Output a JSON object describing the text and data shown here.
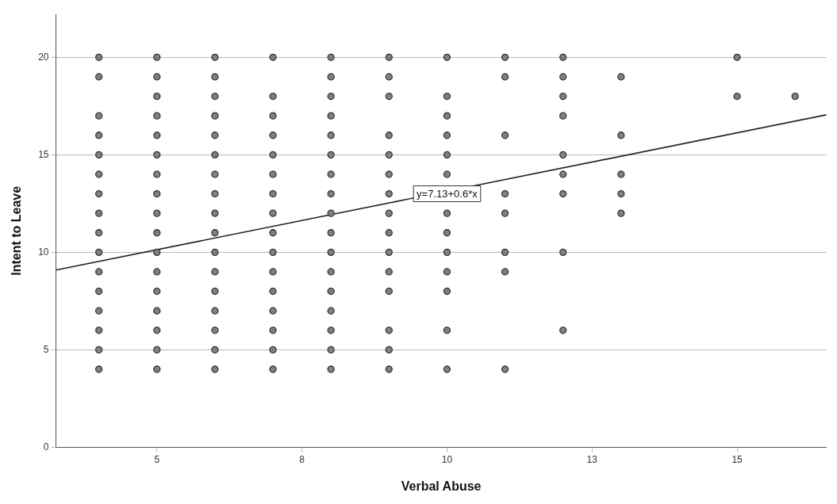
{
  "chart_data": {
    "type": "scatter",
    "xlabel": "Verbal Abuse",
    "ylabel": "Intent to Leave",
    "xlim": [
      3.26,
      16.54
    ],
    "ylim": [
      0,
      22.2
    ],
    "xticks": [
      5,
      {
        "value": 7.5,
        "label": "8"
      },
      10,
      {
        "value": 12.5,
        "label": "13"
      },
      15
    ],
    "yticks": [
      0,
      5,
      10,
      15,
      20
    ],
    "grid": "y",
    "legend": false,
    "marker": "circle",
    "series": [
      {
        "color": "#808080",
        "x": [
          4,
          4,
          4,
          4,
          4,
          4,
          4,
          4,
          4,
          4,
          4,
          4,
          4,
          4,
          4,
          4,
          5,
          5,
          5,
          5,
          5,
          5,
          5,
          5,
          5,
          5,
          5,
          5,
          5,
          5,
          5,
          5,
          5,
          6,
          6,
          6,
          6,
          6,
          6,
          6,
          6,
          6,
          6,
          6,
          6,
          6,
          6,
          6,
          6,
          6,
          7,
          7,
          7,
          7,
          7,
          7,
          7,
          7,
          7,
          7,
          7,
          7,
          7,
          7,
          7,
          7,
          8,
          8,
          8,
          8,
          8,
          8,
          8,
          8,
          8,
          8,
          8,
          8,
          8,
          8,
          8,
          8,
          8,
          9,
          9,
          9,
          9,
          9,
          9,
          9,
          9,
          9,
          9,
          9,
          9,
          9,
          9,
          9,
          10,
          10,
          10,
          10,
          10,
          10,
          10,
          10,
          10,
          10,
          10,
          10,
          10,
          11,
          11,
          11,
          11,
          11,
          11,
          11,
          11,
          12,
          12,
          12,
          12,
          12,
          12,
          12,
          12,
          12,
          13,
          13,
          13,
          13,
          13,
          15,
          15,
          16
        ],
        "values": [
          20,
          19,
          17,
          16,
          15,
          14,
          13,
          12,
          11,
          10,
          9,
          8,
          7,
          6,
          5,
          4,
          20,
          19,
          18,
          17,
          16,
          15,
          14,
          13,
          12,
          11,
          10,
          9,
          8,
          7,
          6,
          5,
          4,
          20,
          19,
          18,
          17,
          16,
          15,
          14,
          13,
          12,
          11,
          10,
          9,
          8,
          7,
          6,
          5,
          4,
          20,
          18,
          17,
          16,
          15,
          14,
          13,
          12,
          11,
          10,
          9,
          8,
          7,
          6,
          5,
          4,
          20,
          19,
          18,
          17,
          16,
          15,
          14,
          13,
          12,
          11,
          10,
          9,
          8,
          7,
          6,
          5,
          4,
          20,
          19,
          18,
          16,
          15,
          14,
          13,
          12,
          11,
          10,
          9,
          8,
          6,
          5,
          4,
          20,
          18,
          17,
          16,
          15,
          14,
          12,
          11,
          10,
          9,
          8,
          6,
          4,
          20,
          19,
          16,
          13,
          12,
          10,
          9,
          4,
          20,
          19,
          18,
          17,
          15,
          14,
          13,
          10,
          6,
          19,
          16,
          14,
          13,
          12,
          20,
          18,
          18
        ]
      },
      {
        "type": "line",
        "color": "#222222",
        "marker": "none",
        "x": [
          3.26,
          16.54
        ],
        "values": [
          9.09,
          17.05
        ]
      }
    ],
    "annotations": [
      {
        "text": "y=7.13+0.6*x",
        "x": 10,
        "y": 13
      }
    ]
  }
}
